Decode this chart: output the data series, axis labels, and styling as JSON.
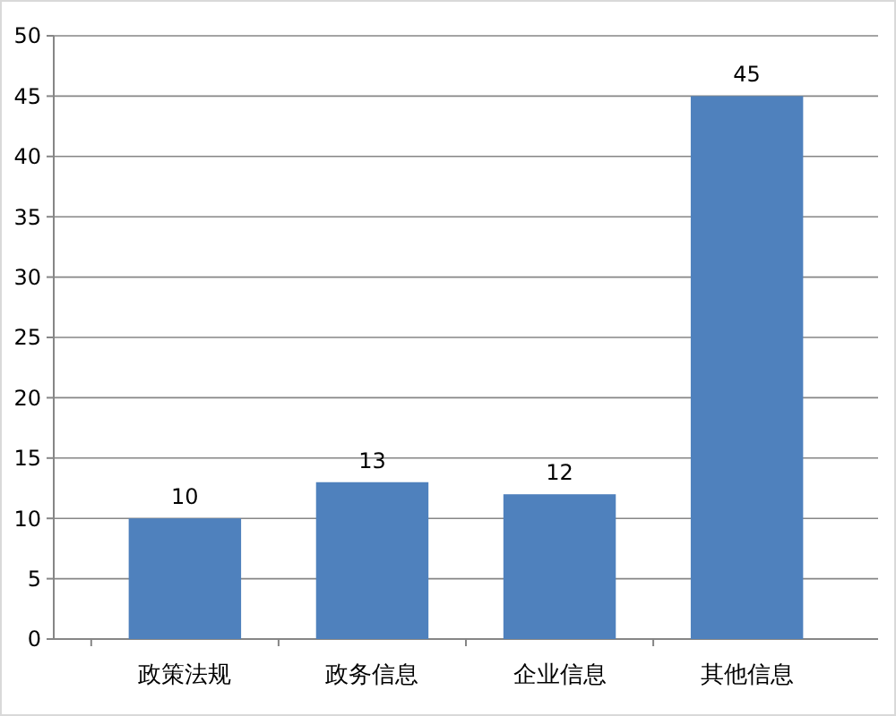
{
  "chart_data": {
    "type": "bar",
    "categories": [
      "政策法规",
      "政务信息",
      "企业信息",
      "其他信息"
    ],
    "values": [
      10,
      13,
      12,
      45
    ],
    "color": "#4f81bd",
    "ylim": [
      0,
      50
    ],
    "yticks": [
      0,
      5,
      10,
      15,
      20,
      25,
      30,
      35,
      40,
      45,
      50
    ],
    "grid": "y",
    "data_labels": true
  }
}
